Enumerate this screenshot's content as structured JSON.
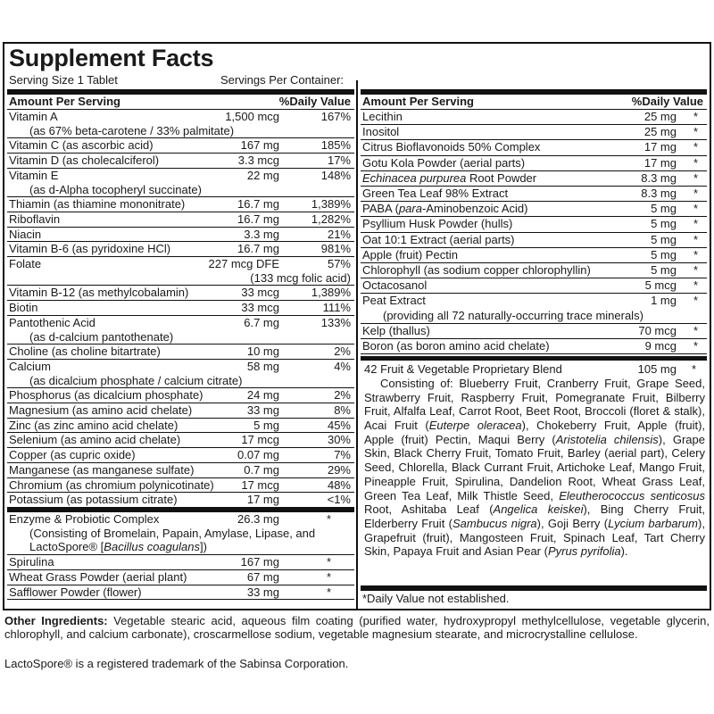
{
  "title": "Supplement Facts",
  "serving_size": "Serving Size 1 Tablet",
  "servings_per_container": "Servings Per Container:",
  "left": {
    "header": {
      "amount": "Amount Per Serving",
      "dv": "%Daily Value"
    },
    "rows": [
      {
        "name": [
          {
            "t": "Vitamin A"
          }
        ],
        "sub": [
          {
            "t": "(as 67% beta-carotene / 33% palmitate)"
          }
        ],
        "amount": "1,500 mcg",
        "dv": "167%"
      },
      {
        "name": [
          {
            "t": "Vitamin C (as ascorbic acid)"
          }
        ],
        "amount": "167 mg",
        "dv": "185%"
      },
      {
        "name": [
          {
            "t": "Vitamin D (as cholecalciferol)"
          }
        ],
        "amount": "3.3 mcg",
        "dv": "17%"
      },
      {
        "name": [
          {
            "t": "Vitamin E"
          }
        ],
        "sub": [
          {
            "t": "(as d-Alpha tocopheryl succinate)"
          }
        ],
        "amount": "22 mg",
        "dv": "148%"
      },
      {
        "name": [
          {
            "t": "Thiamin (as thiamine mononitrate)"
          }
        ],
        "amount": "16.7 mg",
        "dv": "1,389%"
      },
      {
        "name": [
          {
            "t": "Riboflavin"
          }
        ],
        "amount": "16.7 mg",
        "dv": "1,282%"
      },
      {
        "name": [
          {
            "t": "Niacin"
          }
        ],
        "amount": "3.3 mg",
        "dv": "21%"
      },
      {
        "name": [
          {
            "t": "Vitamin B-6 (as pyridoxine HCl)"
          }
        ],
        "amount": "16.7 mg",
        "dv": "981%"
      },
      {
        "name": [
          {
            "t": "Folate"
          }
        ],
        "sub_right": "(133 mcg folic acid)",
        "amount": "227 mcg DFE",
        "dv": "57%"
      },
      {
        "name": [
          {
            "t": "Vitamin B-12 (as methylcobalamin)"
          }
        ],
        "amount": "33 mcg",
        "dv": "1,389%"
      },
      {
        "name": [
          {
            "t": "Biotin"
          }
        ],
        "amount": "33 mcg",
        "dv": "111%"
      },
      {
        "name": [
          {
            "t": "Pantothenic Acid"
          }
        ],
        "sub": [
          {
            "t": "(as d-calcium pantothenate)"
          }
        ],
        "amount": "6.7 mg",
        "dv": "133%"
      },
      {
        "name": [
          {
            "t": "Choline (as choline bitartrate)"
          }
        ],
        "amount": "10 mg",
        "dv": "2%"
      },
      {
        "name": [
          {
            "t": "Calcium"
          }
        ],
        "sub": [
          {
            "t": "(as dicalcium phosphate / calcium citrate)"
          }
        ],
        "amount": "58 mg",
        "dv": "4%"
      },
      {
        "name": [
          {
            "t": "Phosphorus (as dicalcium phosphate)"
          }
        ],
        "amount": "24 mg",
        "dv": "2%"
      },
      {
        "name": [
          {
            "t": "Magnesium (as amino acid chelate)"
          }
        ],
        "amount": "33 mg",
        "dv": "8%"
      },
      {
        "name": [
          {
            "t": "Zinc (as zinc amino acid chelate)"
          }
        ],
        "amount": "5 mg",
        "dv": "45%"
      },
      {
        "name": [
          {
            "t": "Selenium (as amino acid chelate)"
          }
        ],
        "amount": "17 mcg",
        "dv": "30%"
      },
      {
        "name": [
          {
            "t": "Copper (as cupric oxide)"
          }
        ],
        "amount": "0.07 mg",
        "dv": "7%"
      },
      {
        "name": [
          {
            "t": "Manganese (as manganese sulfate)"
          }
        ],
        "amount": "0.7 mg",
        "dv": "29%"
      },
      {
        "name": [
          {
            "t": "Chromium (as chromium polynicotinate)"
          }
        ],
        "amount": "17 mcg",
        "dv": "48%"
      },
      {
        "name": [
          {
            "t": "Potassium (as potassium citrate)"
          }
        ],
        "amount": "17 mg",
        "dv": "<1%"
      }
    ],
    "rows2": [
      {
        "name": [
          {
            "t": "Enzyme & Probiotic Complex"
          }
        ],
        "sub": [
          {
            "t": "(Consisting of Bromelain, Papain, Amylase, Lipase, and"
          }
        ],
        "sub2": [
          {
            "t": "LactoSpore® ["
          },
          {
            "t": "Bacillus coagulans",
            "i": true
          },
          {
            "t": "])"
          }
        ],
        "amount": "26.3 mg",
        "dv": "*"
      },
      {
        "name": [
          {
            "t": "Spirulina"
          }
        ],
        "amount": "167 mg",
        "dv": "*"
      },
      {
        "name": [
          {
            "t": "Wheat Grass Powder (aerial plant)"
          }
        ],
        "amount": "67 mg",
        "dv": "*"
      },
      {
        "name": [
          {
            "t": "Safflower Powder (flower)"
          }
        ],
        "amount": "33 mg",
        "dv": "*"
      }
    ]
  },
  "right": {
    "header": {
      "amount": "Amount Per Serving",
      "dv": "%Daily Value"
    },
    "rows": [
      {
        "name": [
          {
            "t": "Lecithin"
          }
        ],
        "amount": "25 mg",
        "dv": "*"
      },
      {
        "name": [
          {
            "t": "Inositol"
          }
        ],
        "amount": "25 mg",
        "dv": "*"
      },
      {
        "name": [
          {
            "t": "Citrus Bioflavonoids 50% Complex"
          }
        ],
        "amount": "17 mg",
        "dv": "*"
      },
      {
        "name": [
          {
            "t": "Gotu Kola Powder (aerial parts)"
          }
        ],
        "amount": "17 mg",
        "dv": "*"
      },
      {
        "name": [
          {
            "t": "Echinacea purpurea",
            "i": true
          },
          {
            "t": " Root Powder"
          }
        ],
        "amount": "8.3 mg",
        "dv": "*"
      },
      {
        "name": [
          {
            "t": "Green Tea Leaf 98% Extract"
          }
        ],
        "amount": "8.3 mg",
        "dv": "*"
      },
      {
        "name": [
          {
            "t": "PABA ("
          },
          {
            "t": "para",
            "i": true
          },
          {
            "t": "-Aminobenzoic Acid)"
          }
        ],
        "amount": "5 mg",
        "dv": "*"
      },
      {
        "name": [
          {
            "t": "Psyllium Husk Powder (hulls)"
          }
        ],
        "amount": "5 mg",
        "dv": "*"
      },
      {
        "name": [
          {
            "t": "Oat 10:1 Extract (aerial parts)"
          }
        ],
        "amount": "5 mg",
        "dv": "*"
      },
      {
        "name": [
          {
            "t": "Apple (fruit) Pectin"
          }
        ],
        "amount": "5 mg",
        "dv": "*"
      },
      {
        "name": [
          {
            "t": "Chlorophyll (as sodium copper chlorophyllin)"
          }
        ],
        "amount": "5 mg",
        "dv": "*"
      },
      {
        "name": [
          {
            "t": "Octacosanol"
          }
        ],
        "amount": "5 mcg",
        "dv": "*"
      },
      {
        "name": [
          {
            "t": "Peat Extract"
          }
        ],
        "sub": [
          {
            "t": "(providing all 72 naturally-occurring trace minerals)"
          }
        ],
        "amount": "1 mg",
        "dv": "*"
      },
      {
        "name": [
          {
            "t": "Kelp (thallus)"
          }
        ],
        "amount": "70 mcg",
        "dv": "*"
      },
      {
        "name": [
          {
            "t": "Boron (as boron amino acid chelate)"
          }
        ],
        "amount": "9 mcg",
        "dv": "*"
      }
    ],
    "blend": {
      "name": "42 Fruit & Vegetable Proprietary Blend",
      "amount": "105 mg",
      "dv": "*",
      "body": [
        {
          "t": "Consisting of: Blueberry Fruit, Cranberry Fruit, Grape Seed, Strawberry Fruit, Raspberry Fruit, Pomegranate Fruit, Bilberry Fruit, Alfalfa Leaf, Carrot Root, Beet Root, Broccoli (floret & stalk), Acai Fruit ("
        },
        {
          "t": "Euterpe oleracea",
          "i": true
        },
        {
          "t": "), Chokeberry Fruit, Apple (fruit), Apple (fruit) Pectin, Maqui Berry ("
        },
        {
          "t": "Aristotelia chilensis",
          "i": true
        },
        {
          "t": "), Grape Skin, Black Cherry Fruit, Tomato Fruit, Barley (aerial part), Celery Seed, Chlorella, Black Currant Fruit, Artichoke Leaf, Mango Fruit, Pineapple Fruit, Spirulina, Dandelion Root, Wheat Grass Leaf, Green Tea Leaf, Milk Thistle Seed, "
        },
        {
          "t": "Eleutherococcus senticosus",
          "i": true
        },
        {
          "t": " Root, Ashitaba Leaf ("
        },
        {
          "t": "Angelica keiskei",
          "i": true
        },
        {
          "t": "), Bing Cherry Fruit, Elderberry Fruit ("
        },
        {
          "t": "Sambucus nigra",
          "i": true
        },
        {
          "t": "), Goji Berry ("
        },
        {
          "t": "Lycium barbarum",
          "i": true
        },
        {
          "t": "), Grapefruit (fruit), Mangosteen Fruit, Spinach Leaf, Tart Cherry Skin, Papaya Fruit and Asian Pear ("
        },
        {
          "t": "Pyrus pyrifolia",
          "i": true
        },
        {
          "t": ")."
        }
      ]
    },
    "dv_note": "*Daily Value not established."
  },
  "other_ingredients": {
    "label": "Other Ingredients:",
    "text": " Vegetable stearic acid, aqueous film coating (purified water, hydroxypropyl methylcellulose, vegetable glycerin, chlorophyll, and calcium carbonate), croscarmellose sodium, vegetable magnesium stearate, and microcrystalline cellulose."
  },
  "trademark": "LactoSpore® is a registered trademark of the Sabinsa Corporation."
}
